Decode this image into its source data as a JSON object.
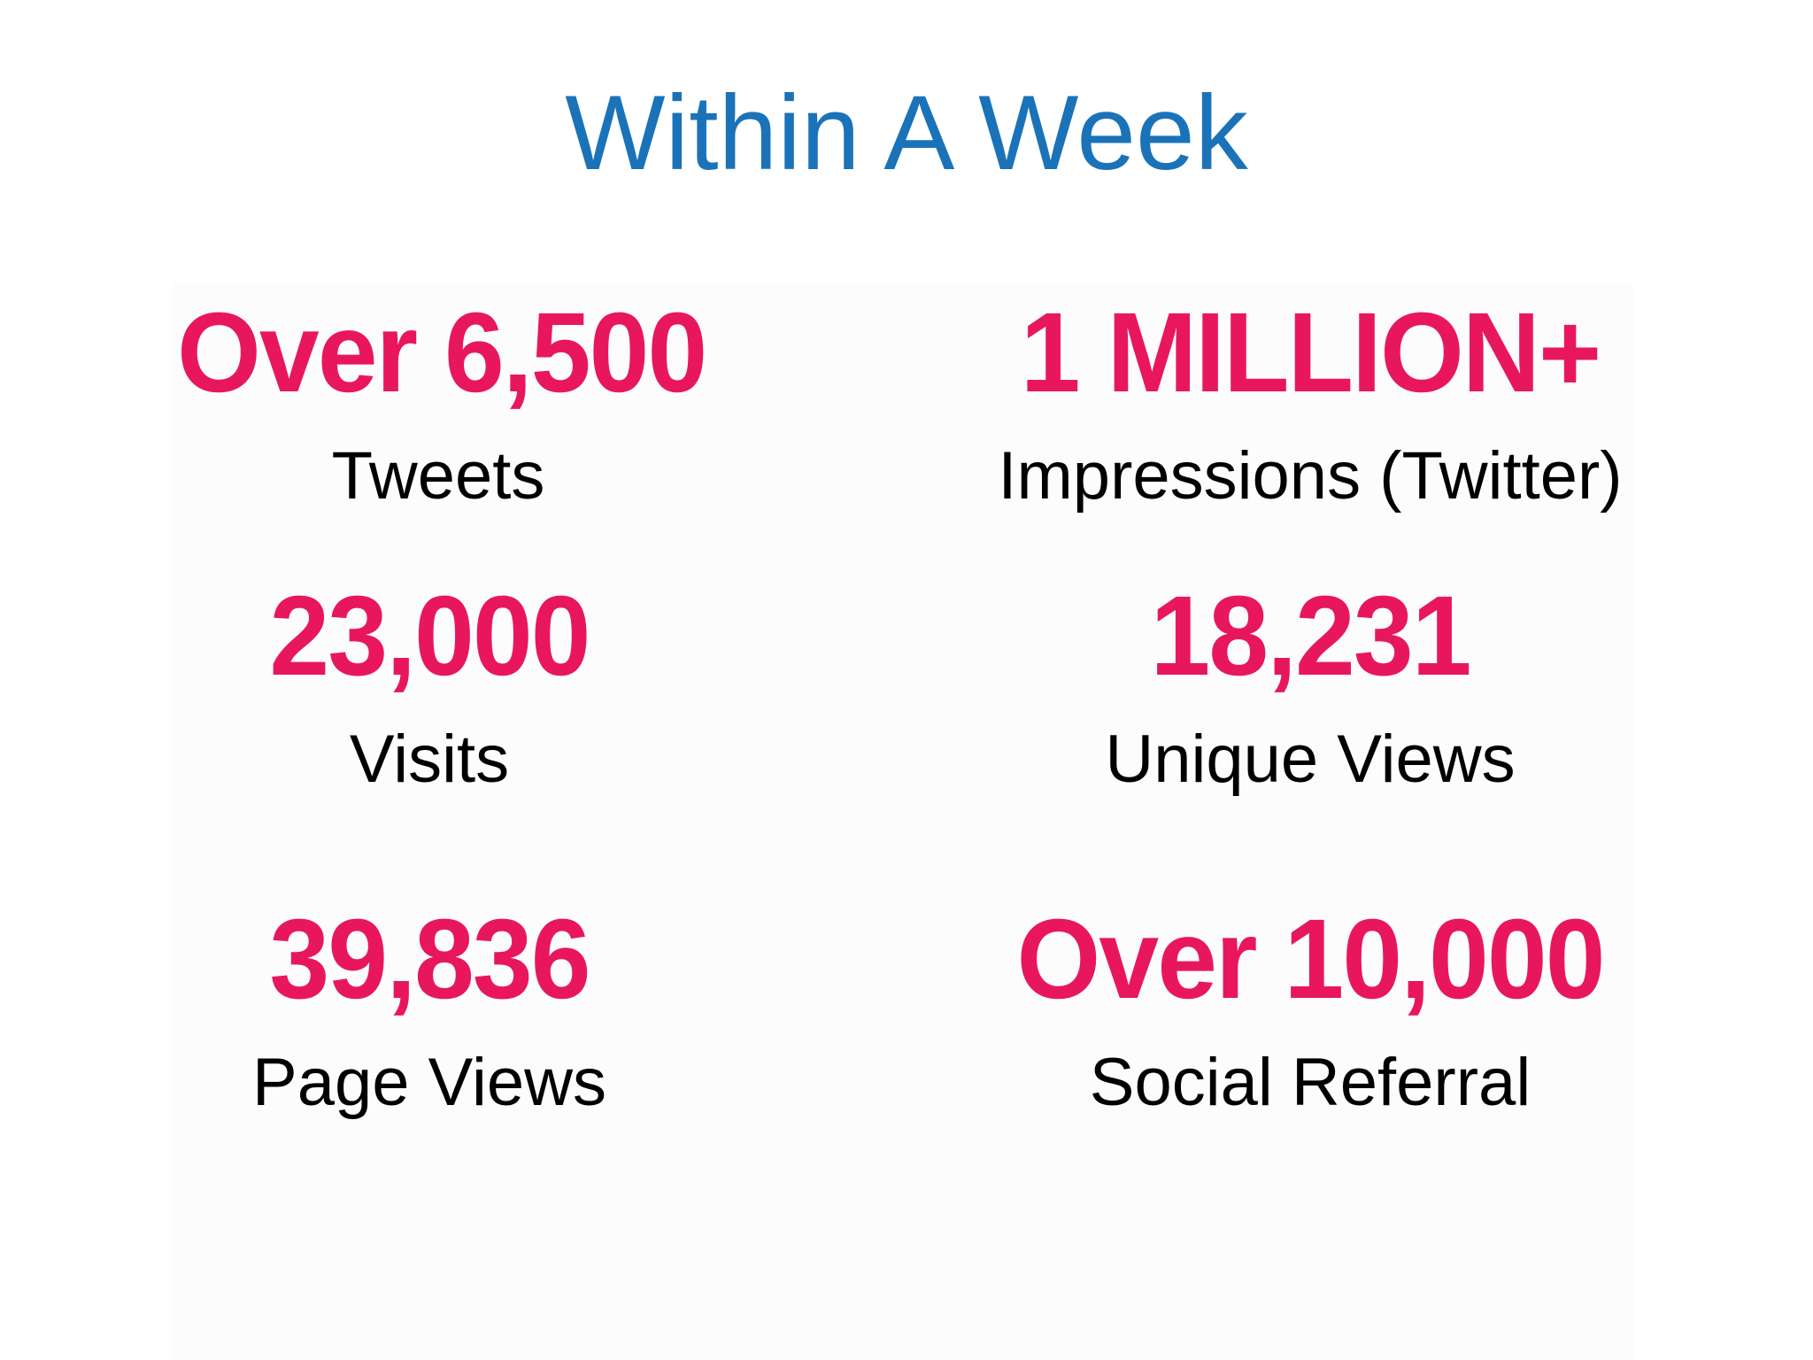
{
  "title": "Within A Week",
  "colors": {
    "title": "#1a73b9",
    "number": "#e8175d",
    "label": "#000000"
  },
  "stats": [
    {
      "number": "Over 6,500",
      "label": "Tweets"
    },
    {
      "number": "1 MILLION+",
      "label": "Impressions (Twitter)"
    },
    {
      "number": "23,000",
      "label": "Visits"
    },
    {
      "number": "18,231",
      "label": "Unique Views"
    },
    {
      "number": "39,836",
      "label": "Page Views"
    },
    {
      "number": "Over 10,000",
      "label": "Social Referral"
    }
  ]
}
